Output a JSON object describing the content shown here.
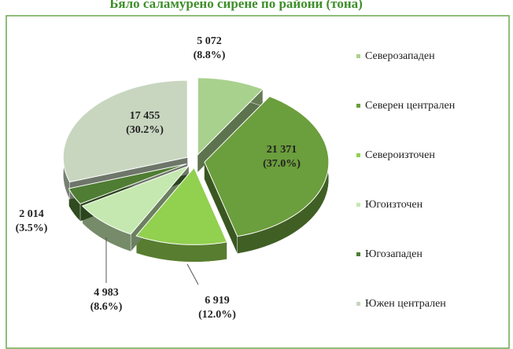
{
  "chart_data": {
    "type": "pie3d",
    "title": "Бяло саламурено сирене по райони (тона)",
    "categories": [
      "Северозападен",
      "Северен централен",
      "Североизточен",
      "Югоизточен",
      "Югозападен",
      "Южен централен"
    ],
    "values": [
      5072,
      21371,
      6919,
      4983,
      2014,
      17455
    ],
    "value_labels": [
      "5 072",
      "21 371",
      "6 919",
      "4 983",
      "2 014",
      "17 455"
    ],
    "percentages": [
      8.8,
      37.0,
      12.0,
      8.6,
      3.5,
      30.2
    ],
    "percentage_labels": [
      "(8.8%)",
      "(37.0%)",
      "(12.0%)",
      "(8.6%)",
      "(3.5%)",
      "(30.2%)"
    ],
    "colors": [
      "#a9d18e",
      "#6b9e3c",
      "#92d050",
      "#c5e8b0",
      "#4f7d33",
      "#c8d6c0"
    ],
    "legend": "right"
  }
}
